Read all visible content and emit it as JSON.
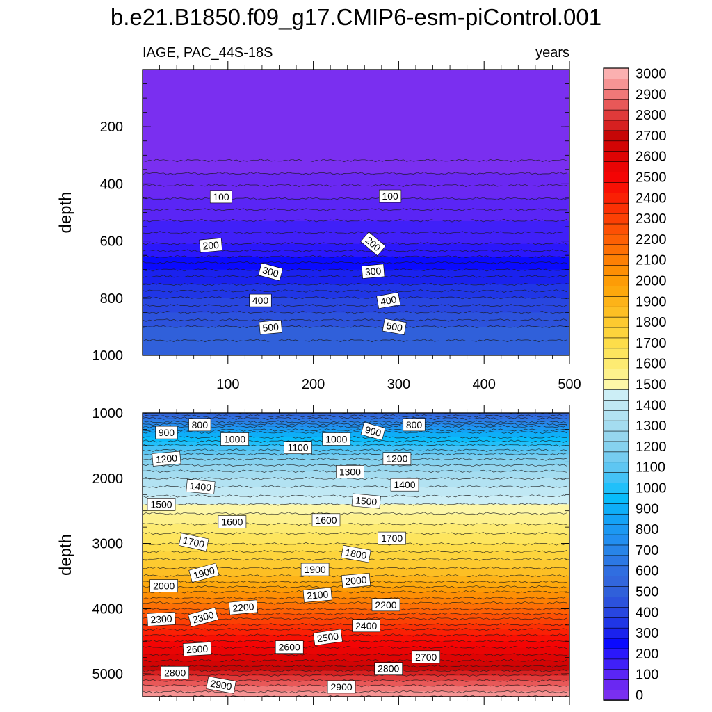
{
  "title": "b.e21.B1850.f09_g17.CMIP6-esm-piControl.001",
  "chart_data": {
    "type": "contour",
    "title": "b.e21.B1850.f09_g17.CMIP6-esm-piControl.001",
    "variable_label": "IAGE, PAC_44S-18S",
    "units_label": "years",
    "x_range": [
      0,
      500
    ],
    "x_ticks": [
      100,
      200,
      300,
      400,
      500
    ],
    "ylabel": "depth",
    "panels": [
      {
        "name": "upper",
        "y_range": [
          0,
          1000
        ],
        "y_ticks": [
          200,
          400,
          600,
          800,
          1000
        ],
        "contour_levels": [
          25,
          50,
          75,
          100,
          125,
          150,
          175,
          200,
          225,
          250,
          275,
          300,
          325,
          350,
          375,
          400,
          425,
          450,
          475,
          500,
          525
        ],
        "profile": [
          {
            "depth": 0,
            "age": 0
          },
          {
            "depth": 320,
            "age": 25
          },
          {
            "depth": 380,
            "age": 60
          },
          {
            "depth": 450,
            "age": 100
          },
          {
            "depth": 530,
            "age": 150
          },
          {
            "depth": 610,
            "age": 200
          },
          {
            "depth": 700,
            "age": 300
          },
          {
            "depth": 800,
            "age": 400
          },
          {
            "depth": 900,
            "age": 500
          },
          {
            "depth": 1000,
            "age": 550
          }
        ],
        "labels": [
          {
            "text": "100",
            "x": 92,
            "y": 445,
            "rot": 0
          },
          {
            "text": "100",
            "x": 290,
            "y": 443,
            "rot": 0
          },
          {
            "text": "200",
            "x": 80,
            "y": 615,
            "rot": -5
          },
          {
            "text": "200",
            "x": 270,
            "y": 610,
            "rot": 40
          },
          {
            "text": "300",
            "x": 150,
            "y": 708,
            "rot": 15
          },
          {
            "text": "300",
            "x": 270,
            "y": 706,
            "rot": -5
          },
          {
            "text": "400",
            "x": 138,
            "y": 808,
            "rot": 0
          },
          {
            "text": "400",
            "x": 288,
            "y": 808,
            "rot": -10
          },
          {
            "text": "500",
            "x": 150,
            "y": 902,
            "rot": -5
          },
          {
            "text": "500",
            "x": 295,
            "y": 900,
            "rot": 10
          }
        ]
      },
      {
        "name": "lower",
        "y_range": [
          1000,
          5350
        ],
        "y_ticks": [
          1000,
          2000,
          3000,
          4000,
          5000
        ],
        "contour_levels": [
          550,
          600,
          650,
          700,
          750,
          800,
          850,
          900,
          950,
          1000,
          1050,
          1100,
          1150,
          1200,
          1250,
          1300,
          1350,
          1400,
          1450,
          1500,
          1550,
          1600,
          1650,
          1700,
          1750,
          1800,
          1850,
          1900,
          1950,
          2000,
          2050,
          2100,
          2150,
          2200,
          2250,
          2300,
          2350,
          2400,
          2450,
          2500,
          2550,
          2600,
          2650,
          2700,
          2750,
          2800,
          2850,
          2900,
          2950,
          3000
        ],
        "profile": [
          {
            "depth": 1000,
            "age": 550
          },
          {
            "depth": 1300,
            "age": 900
          },
          {
            "depth": 1700,
            "age": 1200
          },
          {
            "depth": 2000,
            "age": 1350
          },
          {
            "depth": 2400,
            "age": 1500
          },
          {
            "depth": 3000,
            "age": 1700
          },
          {
            "depth": 3500,
            "age": 1900
          },
          {
            "depth": 4000,
            "age": 2200
          },
          {
            "depth": 4400,
            "age": 2450
          },
          {
            "depth": 4800,
            "age": 2650
          },
          {
            "depth": 5100,
            "age": 2850
          },
          {
            "depth": 5350,
            "age": 3000
          }
        ],
        "labels": [
          {
            "text": "900",
            "x": 28,
            "y": 1300,
            "rot": 0
          },
          {
            "text": "800",
            "x": 67,
            "y": 1180,
            "rot": 0
          },
          {
            "text": "1000",
            "x": 108,
            "y": 1400,
            "rot": 0
          },
          {
            "text": "1100",
            "x": 182,
            "y": 1530,
            "rot": 0
          },
          {
            "text": "1000",
            "x": 227,
            "y": 1400,
            "rot": 0
          },
          {
            "text": "900",
            "x": 270,
            "y": 1280,
            "rot": 15
          },
          {
            "text": "800",
            "x": 318,
            "y": 1180,
            "rot": 0
          },
          {
            "text": "1200",
            "x": 28,
            "y": 1700,
            "rot": -5
          },
          {
            "text": "1300",
            "x": 243,
            "y": 1900,
            "rot": 0
          },
          {
            "text": "1200",
            "x": 298,
            "y": 1700,
            "rot": 0
          },
          {
            "text": "1400",
            "x": 68,
            "y": 2130,
            "rot": 5
          },
          {
            "text": "1400",
            "x": 307,
            "y": 2100,
            "rot": 0
          },
          {
            "text": "1500",
            "x": 22,
            "y": 2400,
            "rot": 0
          },
          {
            "text": "1500",
            "x": 262,
            "y": 2350,
            "rot": 5
          },
          {
            "text": "1600",
            "x": 105,
            "y": 2670,
            "rot": 0
          },
          {
            "text": "1600",
            "x": 215,
            "y": 2640,
            "rot": 0
          },
          {
            "text": "1700",
            "x": 60,
            "y": 2980,
            "rot": 12
          },
          {
            "text": "1700",
            "x": 292,
            "y": 2920,
            "rot": 0
          },
          {
            "text": "1800",
            "x": 250,
            "y": 3160,
            "rot": 10
          },
          {
            "text": "1900",
            "x": 72,
            "y": 3450,
            "rot": -15
          },
          {
            "text": "1900",
            "x": 202,
            "y": 3400,
            "rot": 0
          },
          {
            "text": "2000",
            "x": 25,
            "y": 3650,
            "rot": 0
          },
          {
            "text": "2000",
            "x": 250,
            "y": 3570,
            "rot": -5
          },
          {
            "text": "2100",
            "x": 205,
            "y": 3790,
            "rot": -5
          },
          {
            "text": "2200",
            "x": 118,
            "y": 3980,
            "rot": -5
          },
          {
            "text": "2200",
            "x": 285,
            "y": 3940,
            "rot": 0
          },
          {
            "text": "2300",
            "x": 22,
            "y": 4160,
            "rot": -3
          },
          {
            "text": "2300",
            "x": 71,
            "y": 4130,
            "rot": -15
          },
          {
            "text": "2400",
            "x": 262,
            "y": 4260,
            "rot": 0
          },
          {
            "text": "2500",
            "x": 217,
            "y": 4440,
            "rot": -8
          },
          {
            "text": "2600",
            "x": 64,
            "y": 4620,
            "rot": -3
          },
          {
            "text": "2600",
            "x": 172,
            "y": 4590,
            "rot": 0
          },
          {
            "text": "2700",
            "x": 332,
            "y": 4740,
            "rot": 0
          },
          {
            "text": "2800",
            "x": 38,
            "y": 4980,
            "rot": 0
          },
          {
            "text": "2800",
            "x": 288,
            "y": 4920,
            "rot": 0
          },
          {
            "text": "2900",
            "x": 92,
            "y": 5170,
            "rot": 10
          },
          {
            "text": "2900",
            "x": 233,
            "y": 5200,
            "rot": 0
          }
        ]
      }
    ],
    "colorbar": {
      "tick_labels": [
        "0",
        "100",
        "200",
        "300",
        "400",
        "500",
        "600",
        "700",
        "800",
        "900",
        "1000",
        "1100",
        "1200",
        "1300",
        "1400",
        "1500",
        "1600",
        "1700",
        "1800",
        "1900",
        "2000",
        "2100",
        "2200",
        "2300",
        "2400",
        "2500",
        "2600",
        "2700",
        "2800",
        "2900",
        "3000"
      ],
      "colors": [
        "#7a2ff0",
        "#6a28f2",
        "#5a25f5",
        "#4020f8",
        "#2b18fb",
        "#0a0aff",
        "#1a22ee",
        "#2036e6",
        "#2846e0",
        "#2c52dc",
        "#3060da",
        "#3266dc",
        "#306ee0",
        "#2c78e4",
        "#2884e8",
        "#228ef0",
        "#1c98f2",
        "#14a2f6",
        "#0eaef8",
        "#08bcfb",
        "#20c0fa",
        "#44c2f6",
        "#5ec6f2",
        "#76ccf0",
        "#86d2ef",
        "#96d6ee",
        "#a4dcf0",
        "#b2e2f2",
        "#c0e8f4",
        "#cceef6",
        "#fdf7a8",
        "#fdf18c",
        "#fdeb72",
        "#fde55e",
        "#fddd4a",
        "#fdd43c",
        "#fdca30",
        "#fdbf24",
        "#fdb318",
        "#fda80c",
        "#fd9c06",
        "#fd8f04",
        "#fd8004",
        "#fd7004",
        "#fd6004",
        "#fd5004",
        "#fc4004",
        "#fb3004",
        "#fa2004",
        "#f81004",
        "#f40404",
        "#ea0404",
        "#de0404",
        "#d20404",
        "#c60606",
        "#d62020",
        "#e03a3a",
        "#e85858",
        "#f07878",
        "#f69494",
        "#fbb0b0"
      ]
    }
  }
}
